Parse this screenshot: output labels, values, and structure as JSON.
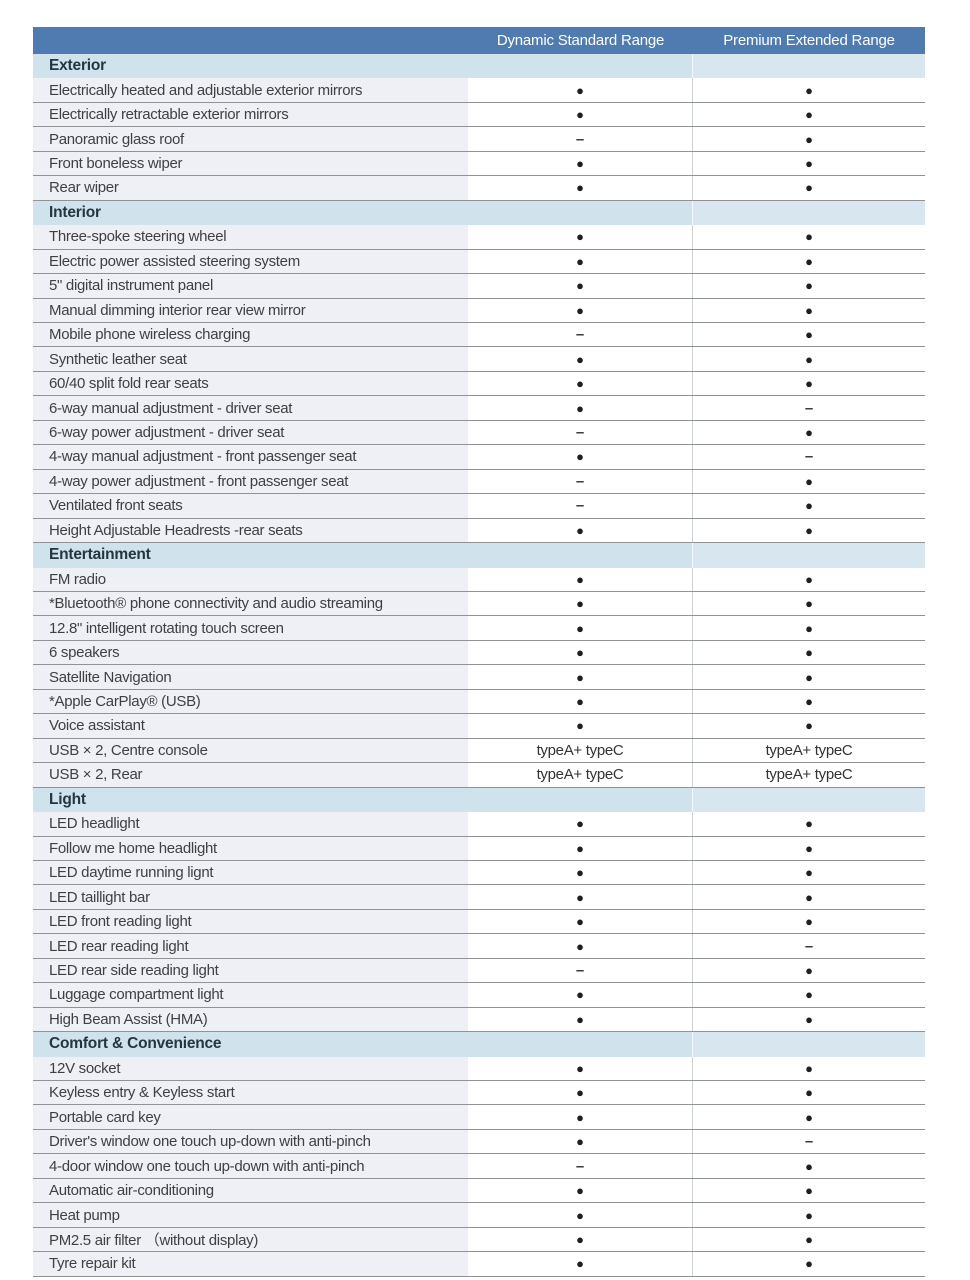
{
  "table": {
    "columns": [
      "",
      "Dynamic Standard Range",
      "Premium Extended Range"
    ],
    "legend": {
      "included_symbol": "●",
      "not_available_symbol": "–"
    },
    "colors": {
      "header_bg": "#4f7bb1",
      "header_text": "#ffffff",
      "section_bg": "#d0e2ec",
      "section_bg_right": "#d8e7ef",
      "name_column_bg": "#eef0f5",
      "value_column_bg": "#ffffff",
      "row_border": "#909396",
      "column_divider": "#cdd2d6",
      "label_text": "#3f4042",
      "section_text": "#233642"
    },
    "sections": [
      {
        "title": "Exterior",
        "rows": [
          {
            "label": "Electrically heated and adjustable exterior mirrors",
            "std": "●",
            "ext": "●"
          },
          {
            "label": "Electrically retractable exterior mirrors",
            "std": "●",
            "ext": "●"
          },
          {
            "label": "Panoramic glass roof",
            "std": "–",
            "ext": "●"
          },
          {
            "label": "Front boneless wiper",
            "std": "●",
            "ext": "●"
          },
          {
            "label": "Rear wiper",
            "std": "●",
            "ext": "●"
          }
        ]
      },
      {
        "title": "Interior",
        "rows": [
          {
            "label": "Three-spoke steering wheel",
            "std": "●",
            "ext": "●"
          },
          {
            "label": "Electric power assisted steering system",
            "std": "●",
            "ext": "●"
          },
          {
            "label": "5\" digital instrument panel",
            "std": "●",
            "ext": "●"
          },
          {
            "label": "Manual dimming interior rear view mirror",
            "std": "●",
            "ext": "●"
          },
          {
            "label": "Mobile phone wireless charging",
            "std": "–",
            "ext": "●"
          },
          {
            "label": "Synthetic leather seat",
            "std": "●",
            "ext": "●"
          },
          {
            "label": "60/40 split fold rear seats",
            "std": "●",
            "ext": "●"
          },
          {
            "label": "6-way manual adjustment - driver seat",
            "std": "●",
            "ext": "–"
          },
          {
            "label": "6-way power adjustment - driver seat",
            "std": "–",
            "ext": "●"
          },
          {
            "label": "4-way manual adjustment - front passenger seat",
            "std": "●",
            "ext": "–"
          },
          {
            "label": "4-way power adjustment - front passenger seat",
            "std": "–",
            "ext": "●"
          },
          {
            "label": "Ventilated front  seats",
            "std": "–",
            "ext": "●"
          },
          {
            "label": "Height Adjustable Headrests -rear seats",
            "std": "●",
            "ext": "●"
          }
        ]
      },
      {
        "title": "Entertainment",
        "rows": [
          {
            "label": "FM radio",
            "std": "●",
            "ext": "●"
          },
          {
            "label": "*Bluetooth® phone connectivity and audio streaming",
            "std": "●",
            "ext": "●"
          },
          {
            "label": "12.8\" intelligent rotating touch screen",
            "std": "●",
            "ext": "●"
          },
          {
            "label": "6 speakers",
            "std": "●",
            "ext": "●"
          },
          {
            "label": "Satellite Navigation",
            "std": "●",
            "ext": "●"
          },
          {
            "label": "*Apple CarPlay® (USB)",
            "std": "●",
            "ext": "●"
          },
          {
            "label": "Voice assistant",
            "std": "●",
            "ext": "●"
          },
          {
            "label": "USB × 2, Centre console",
            "std": "typeA+ typeC",
            "ext": "typeA+ typeC"
          },
          {
            "label": "USB × 2, Rear",
            "std": "typeA+ typeC",
            "ext": "typeA+ typeC"
          }
        ]
      },
      {
        "title": "Light",
        "rows": [
          {
            "label": "LED headlight",
            "std": "●",
            "ext": "●"
          },
          {
            "label": "Follow me home headlight",
            "std": "●",
            "ext": "●"
          },
          {
            "label": "LED daytime running lignt",
            "std": "●",
            "ext": "●"
          },
          {
            "label": "LED taillight bar",
            "std": "●",
            "ext": "●"
          },
          {
            "label": "LED front reading light",
            "std": "●",
            "ext": "●"
          },
          {
            "label": "LED rear reading light",
            "std": "●",
            "ext": "–"
          },
          {
            "label": "LED rear side reading light",
            "std": "–",
            "ext": "●"
          },
          {
            "label": "Luggage compartment light",
            "std": "●",
            "ext": "●"
          },
          {
            "label": "High Beam Assist (HMA)",
            "std": "●",
            "ext": "●"
          }
        ]
      },
      {
        "title": "Comfort & Convenience",
        "rows": [
          {
            "label": "12V socket",
            "std": "●",
            "ext": "●"
          },
          {
            "label": "Keyless entry & Keyless start",
            "std": "●",
            "ext": "●"
          },
          {
            "label": "Portable card key",
            "std": "●",
            "ext": "●"
          },
          {
            "label": "Driver's window one touch up-down with anti-pinch",
            "std": "●",
            "ext": "–"
          },
          {
            "label": "4-door window one touch up-down with anti-pinch",
            "std": "–",
            "ext": "●"
          },
          {
            "label": "Automatic air-conditioning",
            "std": "●",
            "ext": "●"
          },
          {
            "label": "Heat pump",
            "std": "●",
            "ext": "●"
          },
          {
            "label": "PM2.5 air filter （without display)",
            "std": "●",
            "ext": "●"
          },
          {
            "label": "Tyre repair kit",
            "std": "●",
            "ext": "●"
          }
        ]
      }
    ]
  }
}
